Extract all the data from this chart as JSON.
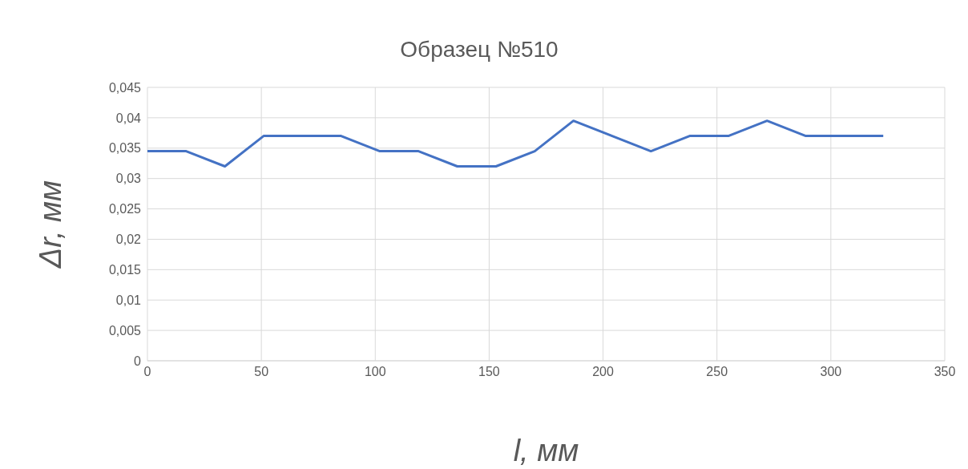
{
  "chart_data": {
    "type": "line",
    "title": "Образец №510",
    "xlabel": "l, мм",
    "ylabel": "Δr, мм",
    "x": [
      0,
      17,
      34,
      51,
      68,
      85,
      102,
      119,
      136,
      153,
      170,
      187,
      204,
      221,
      238,
      255,
      272,
      289,
      306,
      323
    ],
    "series": [
      {
        "color": "#4472c4",
        "values": [
          0.0345,
          0.0345,
          0.032,
          0.037,
          0.037,
          0.037,
          0.0345,
          0.0345,
          0.032,
          0.032,
          0.0345,
          0.0395,
          0.037,
          0.0345,
          0.037,
          0.037,
          0.0395,
          0.037,
          0.037,
          0.037
        ]
      }
    ],
    "xlim": [
      0,
      350
    ],
    "xticks": [
      0,
      50,
      100,
      150,
      200,
      250,
      300,
      350
    ],
    "ylim": [
      0,
      0.045
    ],
    "yticks": [
      0,
      {
        "value": 0.005,
        "label": "0,005"
      },
      {
        "value": 0.01,
        "label": "0,01"
      },
      {
        "value": 0.015,
        "label": "0,015"
      },
      {
        "value": 0.02,
        "label": "0,02"
      },
      {
        "value": 0.025,
        "label": "0,025"
      },
      {
        "value": 0.03,
        "label": "0,03"
      },
      {
        "value": 0.035,
        "label": "0,035"
      },
      {
        "value": 0.04,
        "label": "0,04"
      },
      {
        "value": 0.045,
        "label": "0,045"
      }
    ],
    "grid": true,
    "marker": "none",
    "line_style": "solid",
    "legend": false
  }
}
